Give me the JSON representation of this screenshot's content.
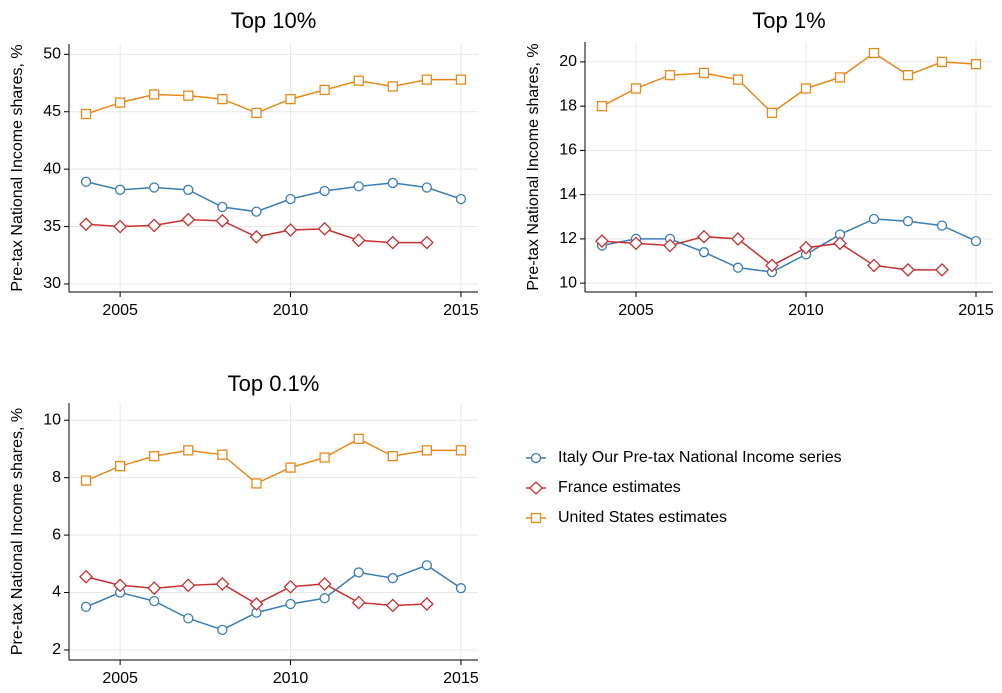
{
  "chart_data": [
    {
      "type": "line",
      "title": "Top 10%",
      "ylabel": "Pre-tax National Income shares, %",
      "x": [
        2004,
        2005,
        2006,
        2007,
        2008,
        2009,
        2010,
        2011,
        2012,
        2013,
        2014,
        2015
      ],
      "xlim": [
        2003.5,
        2015.5
      ],
      "xticks": [
        2005,
        2010,
        2015
      ],
      "ylim": [
        29.3,
        50.9
      ],
      "yticks": [
        30,
        35,
        40,
        45,
        50
      ],
      "grid": true,
      "series": [
        {
          "name": "Italy Our Pre-tax National Income series",
          "color": "#3a7db8",
          "marker": "circle",
          "values": [
            38.9,
            38.2,
            38.4,
            38.2,
            36.7,
            36.3,
            37.4,
            38.1,
            38.5,
            38.8,
            38.4,
            37.4
          ]
        },
        {
          "name": "France estimates",
          "color": "#c8312f",
          "marker": "diamond",
          "values": [
            35.2,
            35.0,
            35.1,
            35.6,
            35.5,
            34.1,
            34.7,
            34.8,
            33.8,
            33.6,
            33.6,
            null
          ]
        },
        {
          "name": "United States estimates",
          "color": "#e8891a",
          "marker": "square",
          "values": [
            44.8,
            45.8,
            46.5,
            46.4,
            46.1,
            44.9,
            46.1,
            46.9,
            47.7,
            47.2,
            47.8,
            47.8
          ]
        }
      ]
    },
    {
      "type": "line",
      "title": "Top 1%",
      "ylabel": "Pre-tax National Income shares, %",
      "x": [
        2004,
        2005,
        2006,
        2007,
        2008,
        2009,
        2010,
        2011,
        2012,
        2013,
        2014,
        2015
      ],
      "xlim": [
        2003.5,
        2015.5
      ],
      "xticks": [
        2005,
        2010,
        2015
      ],
      "ylim": [
        9.6,
        20.9
      ],
      "yticks": [
        10,
        12,
        14,
        16,
        18,
        20
      ],
      "grid": true,
      "series": [
        {
          "color": "#3a7db8",
          "marker": "circle",
          "values": [
            11.7,
            12.0,
            12.0,
            11.4,
            10.7,
            10.5,
            11.3,
            12.2,
            12.9,
            12.8,
            12.6,
            11.9
          ]
        },
        {
          "color": "#c8312f",
          "marker": "diamond",
          "values": [
            11.9,
            11.8,
            11.7,
            12.1,
            12.0,
            10.8,
            11.6,
            11.8,
            10.8,
            10.6,
            10.6,
            null
          ]
        },
        {
          "color": "#e8891a",
          "marker": "square",
          "values": [
            18.0,
            18.8,
            19.4,
            19.5,
            19.2,
            17.7,
            18.8,
            19.3,
            20.4,
            19.4,
            20.0,
            19.9
          ]
        }
      ]
    },
    {
      "type": "line",
      "title": "Top 0.1%",
      "ylabel": "Pre-tax National Income shares, %",
      "x": [
        2004,
        2005,
        2006,
        2007,
        2008,
        2009,
        2010,
        2011,
        2012,
        2013,
        2014,
        2015
      ],
      "xlim": [
        2003.5,
        2015.5
      ],
      "xticks": [
        2005,
        2010,
        2015
      ],
      "ylim": [
        1.65,
        10.6
      ],
      "yticks": [
        2,
        4,
        6,
        8,
        10
      ],
      "grid": true,
      "series": [
        {
          "color": "#3a7db8",
          "marker": "circle",
          "values": [
            3.5,
            4.0,
            3.7,
            3.1,
            2.7,
            3.3,
            3.6,
            3.8,
            4.7,
            4.5,
            4.95,
            4.15
          ]
        },
        {
          "color": "#c8312f",
          "marker": "diamond",
          "values": [
            4.55,
            4.25,
            4.15,
            4.25,
            4.3,
            3.6,
            4.2,
            4.3,
            3.65,
            3.55,
            3.6,
            null
          ]
        },
        {
          "color": "#e8891a",
          "marker": "square",
          "values": [
            7.9,
            8.4,
            8.75,
            8.95,
            8.8,
            7.8,
            8.35,
            8.7,
            9.35,
            8.75,
            8.95,
            8.95
          ]
        }
      ]
    }
  ]
}
